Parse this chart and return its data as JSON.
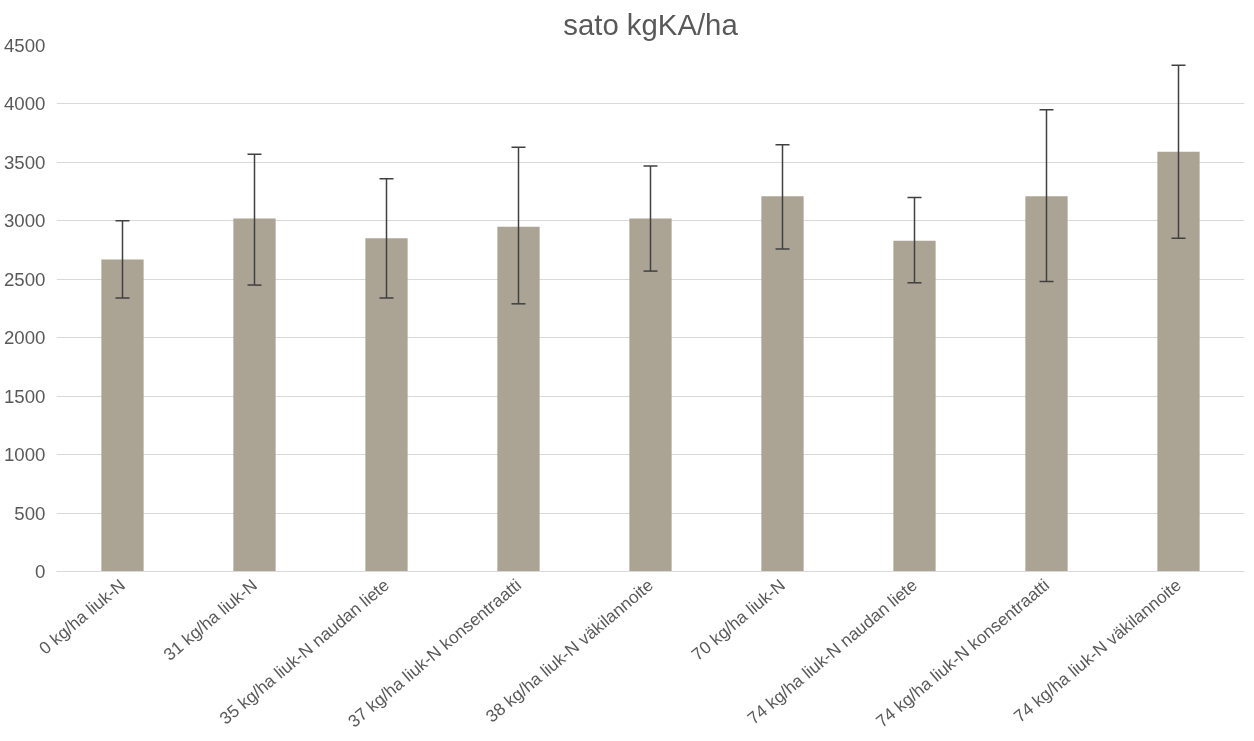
{
  "chart_data": {
    "type": "bar",
    "title": "sato kgKA/ha",
    "categories": [
      "0 kg/ha liuk-N",
      "31 kg/ha liuk-N",
      "35 kg/ha liuk-N naudan liete",
      "37 kg/ha liuk-N konsentraatti",
      "38 kg/ha liuk-N väkilannoite",
      "70 kg/ha liuk-N",
      "74 kg/ha liuk-N naudan liete",
      "74 kg/ha liuk-N konsentraatti",
      "74 kg/ha liuk-N väkilannoite"
    ],
    "values": [
      2670,
      3020,
      2850,
      2950,
      3020,
      3210,
      2830,
      3210,
      3590
    ],
    "errors": [
      [
        2340,
        3000
      ],
      [
        2450,
        3570
      ],
      [
        2340,
        3360
      ],
      [
        2290,
        3630
      ],
      [
        2570,
        3470
      ],
      [
        2760,
        3650
      ],
      [
        2470,
        3200
      ],
      [
        2480,
        3950
      ],
      [
        2850,
        4330
      ]
    ],
    "color": "#aba394",
    "ylim": [
      0,
      4500
    ],
    "yticks": [
      0,
      500,
      1000,
      1500,
      2000,
      2500,
      3000,
      3500,
      4000,
      4500
    ],
    "grid": "y"
  }
}
